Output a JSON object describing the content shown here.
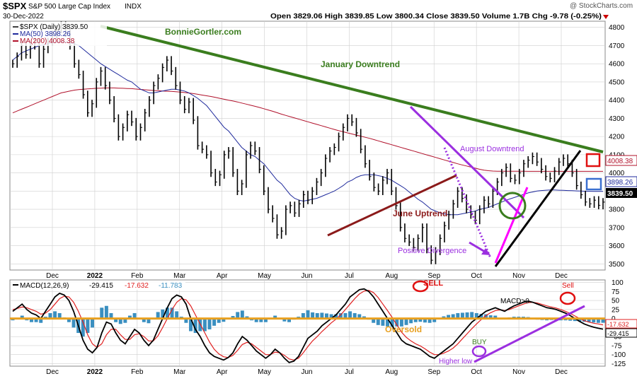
{
  "header": {
    "symbol": "$SPX",
    "name": "S&P 500 Large Cap Index",
    "exchange": "INDX",
    "date": "30-Dec-2022",
    "ohlc": "Open 3829.06  High 3839.85  Low 3800.34  Close 3839.50  Volume 1.7B  Chg -9.78 (-0.25%)",
    "watermark": "@ StockCharts.com"
  },
  "price_legend": {
    "main": "$SPX (Daily) 3839.50",
    "ma50": "MA(50) 3898.26",
    "ma200": "MA(200) 4008.38"
  },
  "price_tags": {
    "ma200": "4008.38",
    "ma50": "3898.26",
    "close": "3839.50"
  },
  "annotations": {
    "website": "BonnieGortler.com",
    "january_downtrend": "January Downtrend",
    "august_downtrend": "August Downtrend",
    "june_uptrend": "June Uptrend",
    "positive_divergence": "Positive Divergence",
    "sell1": "SELL",
    "sell2": "Sell",
    "macd_gt0": "MACD>0",
    "oversold": "Oversold",
    "buy": "BUY",
    "higher_low": "Higher low"
  },
  "macd_legend": {
    "label": "MACD(12,26,9)",
    "v1": "-29.415",
    "v2": "-17.632",
    "v3": "-11.783"
  },
  "macd_tags": {
    "signal": "-17.632",
    "macd": "-29.415"
  },
  "colors": {
    "price": "#000000",
    "ma50": "#1f2a9c",
    "ma200": "#b0102a",
    "jan_trend": "#3a7d1e",
    "june_trend": "#8b1a1a",
    "purple": "#9b2fe0",
    "macd_line": "#000000",
    "signal_line": "#e02020",
    "histogram": "#3a8fc0",
    "zero_line": "#e8a020",
    "grid": "#cfcfcf"
  },
  "chart_data": [
    {
      "type": "line",
      "title": "$SPX S&P 500 Large Cap Index INDX",
      "x_labels": [
        "Dec",
        "2022",
        "Feb",
        "Mar",
        "Apr",
        "May",
        "Jun",
        "Jul",
        "Aug",
        "Sep",
        "Oct",
        "Nov",
        "Dec"
      ],
      "y_ticks": [
        3500,
        3600,
        3700,
        3800,
        3900,
        4000,
        4100,
        4200,
        4300,
        4400,
        4500,
        4600,
        4700,
        4800
      ],
      "ylim": [
        3470,
        4830
      ],
      "series": [
        {
          "name": "$SPX (Daily)",
          "values": [
            4600,
            4640,
            4700,
            4650,
            4700,
            4720,
            4600,
            4680,
            4720,
            4760,
            4790,
            4810,
            4770,
            4700,
            4600,
            4540,
            4430,
            4330,
            4380,
            4500,
            4560,
            4480,
            4400,
            4300,
            4200,
            4250,
            4320,
            4280,
            4200,
            4250,
            4330,
            4400,
            4480,
            4520,
            4580,
            4620,
            4560,
            4480,
            4400,
            4350,
            4390,
            4290,
            4150,
            4130,
            4100,
            4000,
            3950,
            3990,
            4100,
            4120,
            4000,
            3900,
            3940,
            4100,
            4150,
            4120,
            4020,
            3900,
            3800,
            3750,
            3660,
            3680,
            3800,
            3820,
            3780,
            3830,
            3880,
            3850,
            3900,
            3950,
            4000,
            4080,
            4120,
            4140,
            4200,
            4250,
            4300,
            4280,
            4220,
            4130,
            4050,
            3980,
            3920,
            3900,
            3960,
            4000,
            3900,
            3820,
            3700,
            3640,
            3620,
            3590,
            3640,
            3700,
            3580,
            3520,
            3570,
            3640,
            3710,
            3770,
            3830,
            3900,
            3860,
            3800,
            3770,
            3740,
            3800,
            3850,
            3830,
            3900,
            3950,
            4000,
            4030,
            3970,
            3960,
            4000,
            4050,
            4070,
            4090,
            4060,
            4020,
            3980,
            3970,
            4010,
            4060,
            4080,
            4050,
            4000,
            3930,
            3880,
            3840,
            3830,
            3850,
            3822,
            3839.5
          ]
        },
        {
          "name": "MA(50)",
          "values": [
            4620,
            4640,
            4660,
            4670,
            4680,
            4690,
            4700,
            4705,
            4710,
            4715,
            4718,
            4720,
            4720,
            4715,
            4710,
            4700,
            4680,
            4660,
            4640,
            4620,
            4600,
            4585,
            4570,
            4555,
            4540,
            4525,
            4510,
            4500,
            4480,
            4460,
            4450,
            4440,
            4440,
            4445,
            4450,
            4455,
            4460,
            4460,
            4455,
            4450,
            4440,
            4425,
            4410,
            4390,
            4370,
            4340,
            4310,
            4280,
            4250,
            4230,
            4200,
            4170,
            4140,
            4120,
            4100,
            4090,
            4070,
            4050,
            4020,
            3990,
            3960,
            3940,
            3910,
            3880,
            3860,
            3850,
            3845,
            3850,
            3855,
            3860,
            3870,
            3880,
            3890,
            3900,
            3915,
            3930,
            3950,
            3960,
            3975,
            3985,
            3990,
            3990,
            3990,
            3985,
            3980,
            3970,
            3960,
            3945,
            3930,
            3915,
            3895,
            3875,
            3855,
            3840,
            3820,
            3800,
            3790,
            3780,
            3775,
            3770,
            3770,
            3770,
            3775,
            3780,
            3785,
            3790,
            3800,
            3805,
            3810,
            3820,
            3830,
            3840,
            3850,
            3858,
            3866,
            3874,
            3882,
            3890,
            3895,
            3900,
            3903,
            3905,
            3906,
            3906,
            3905,
            3904,
            3903,
            3902,
            3901,
            3900,
            3899,
            3899,
            3898.5,
            3898.3,
            3898.26
          ]
        },
        {
          "name": "MA(200)",
          "values": [
            4330,
            4340,
            4350,
            4360,
            4370,
            4380,
            4390,
            4400,
            4410,
            4420,
            4430,
            4440,
            4445,
            4450,
            4455,
            4458,
            4460,
            4462,
            4463,
            4465,
            4466,
            4467,
            4467,
            4467,
            4466,
            4465,
            4464,
            4463,
            4461,
            4459,
            4457,
            4455,
            4453,
            4452,
            4450,
            4449,
            4448,
            4446,
            4444,
            4442,
            4439,
            4436,
            4432,
            4428,
            4424,
            4420,
            4415,
            4410,
            4405,
            4400,
            4395,
            4390,
            4384,
            4378,
            4372,
            4366,
            4360,
            4353,
            4346,
            4339,
            4331,
            4323,
            4316,
            4309,
            4302,
            4295,
            4288,
            4281,
            4274,
            4267,
            4260,
            4253,
            4246,
            4239,
            4232,
            4226,
            4220,
            4214,
            4208,
            4202,
            4196,
            4190,
            4183,
            4176,
            4169,
            4162,
            4155,
            4148,
            4141,
            4134,
            4127,
            4120,
            4113,
            4106,
            4099,
            4092,
            4085,
            4078,
            4071,
            4064,
            4057,
            4050,
            4044,
            4038,
            4032,
            4026,
            4020,
            4015,
            4012,
            4010,
            4009,
            4009,
            4009,
            4009,
            4009,
            4008.9,
            4008.8,
            4008.7,
            4008.6,
            4008.5,
            4008.5,
            4008.4,
            4008.4,
            4008.4,
            4008.4,
            4008.4,
            4008.4,
            4008.4,
            4008.38,
            4008.38,
            4008.38,
            4008.38,
            4008.38,
            4008.38,
            4008.38
          ]
        }
      ]
    },
    {
      "type": "line",
      "title": "MACD(12,26,9)",
      "y_ticks": [
        100,
        75,
        50,
        25,
        0,
        -25,
        -50,
        -75,
        -100,
        -125
      ],
      "ylim": [
        -130,
        105
      ],
      "series": [
        {
          "name": "MACD",
          "values": [
            20,
            30,
            40,
            25,
            15,
            10,
            0,
            20,
            40,
            60,
            70,
            65,
            50,
            20,
            -20,
            -60,
            -85,
            -95,
            -80,
            -40,
            -10,
            -15,
            -40,
            -60,
            -70,
            -50,
            -30,
            -40,
            -60,
            -75,
            -60,
            -30,
            0,
            30,
            55,
            65,
            60,
            40,
            0,
            -30,
            -50,
            -75,
            -95,
            -105,
            -110,
            -115,
            -108,
            -95,
            -70,
            -50,
            -60,
            -75,
            -90,
            -100,
            -110,
            -100,
            -85,
            -95,
            -110,
            -122,
            -118,
            -105,
            -80,
            -55,
            -45,
            -35,
            -20,
            -10,
            0,
            10,
            25,
            40,
            60,
            70,
            80,
            82,
            75,
            60,
            40,
            20,
            0,
            -20,
            -40,
            -60,
            -70,
            -75,
            -80,
            -85,
            -95,
            -105,
            -110,
            -100,
            -90,
            -80,
            -70,
            -55,
            -40,
            -25,
            -10,
            0,
            10,
            20,
            25,
            30,
            25,
            20,
            28,
            35,
            40,
            45,
            48,
            45,
            40,
            35,
            30,
            28,
            25,
            20,
            15,
            8,
            0,
            -8,
            -15,
            -20,
            -24,
            -27,
            -29.415
          ]
        },
        {
          "name": "Signal",
          "values": [
            25,
            28,
            32,
            30,
            25,
            20,
            12,
            15,
            25,
            40,
            55,
            62,
            60,
            45,
            20,
            -10,
            -45,
            -70,
            -80,
            -70,
            -45,
            -30,
            -30,
            -45,
            -58,
            -58,
            -45,
            -42,
            -50,
            -62,
            -62,
            -48,
            -25,
            0,
            25,
            45,
            55,
            52,
            35,
            10,
            -15,
            -40,
            -65,
            -85,
            -98,
            -106,
            -108,
            -102,
            -88,
            -72,
            -66,
            -70,
            -80,
            -90,
            -100,
            -100,
            -93,
            -95,
            -102,
            -112,
            -115,
            -110,
            -95,
            -78,
            -62,
            -50,
            -36,
            -24,
            -12,
            -2,
            10,
            25,
            40,
            55,
            68,
            76,
            78,
            72,
            58,
            40,
            22,
            3,
            -18,
            -38,
            -52,
            -62,
            -70,
            -76,
            -84,
            -93,
            -100,
            -100,
            -96,
            -90,
            -82,
            -70,
            -56,
            -42,
            -28,
            -15,
            -3,
            8,
            16,
            22,
            24,
            22,
            25,
            30,
            35,
            40,
            44,
            45,
            43,
            39,
            35,
            32,
            29,
            25,
            20,
            14,
            7,
            0,
            -6,
            -10,
            -13,
            -15,
            -17.632
          ]
        }
      ]
    }
  ]
}
